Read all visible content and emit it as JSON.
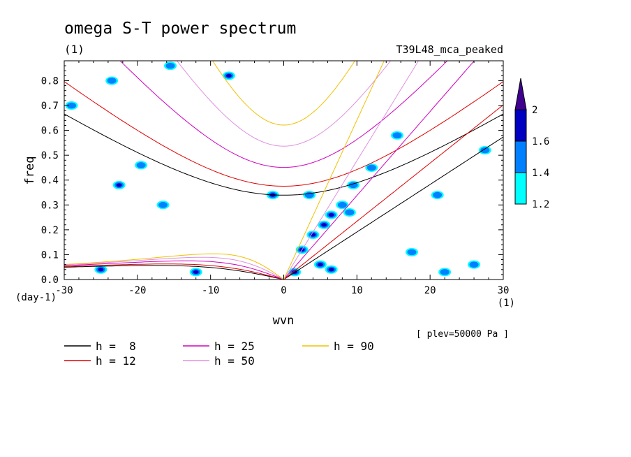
{
  "chart_data": {
    "type": "heatmap",
    "title": "omega S-T power spectrum",
    "subtitle_left": "(1)",
    "subtitle_right": "T39L48_mca_peaked",
    "xlabel": "wvn",
    "ylabel": "freq",
    "x_unit": "(1)",
    "y_unit": "(day-1)",
    "note": "[ plev=50000 Pa ]",
    "xlim": [
      -30,
      30
    ],
    "ylim": [
      0,
      0.88
    ],
    "x_ticks": [
      "-30",
      "-20",
      "-10",
      "0",
      "10",
      "20",
      "30"
    ],
    "x_tick_values": [
      -30,
      -20,
      -10,
      0,
      10,
      20,
      30
    ],
    "y_ticks": [
      "0.0",
      "0.1",
      "0.2",
      "0.3",
      "0.4",
      "0.5",
      "0.6",
      "0.7",
      "0.8"
    ],
    "y_tick_values": [
      0,
      0.1,
      0.2,
      0.3,
      0.4,
      0.5,
      0.6,
      0.7,
      0.8
    ],
    "colorbar": {
      "levels": [
        "1.2",
        "1.4",
        "1.6",
        "2"
      ],
      "level_values": [
        1.2,
        1.4,
        1.6,
        2.0
      ],
      "colors": [
        "#00ffff",
        "#0080ff",
        "#0000c0",
        "#400090"
      ]
    },
    "dispersion_curves": [
      {
        "name": "h =  8",
        "h": 8,
        "color": "#000000"
      },
      {
        "name": "h = 12",
        "h": 12,
        "color": "#e00000"
      },
      {
        "name": "h = 25",
        "h": 25,
        "color": "#d000c0"
      },
      {
        "name": "h = 50",
        "h": 50,
        "color": "#e090e0"
      },
      {
        "name": "h = 90",
        "h": 90,
        "color": "#f0c000"
      }
    ],
    "spectral_blobs": [
      {
        "x": 2.5,
        "y": 0.12,
        "level": 1.6
      },
      {
        "x": 4.0,
        "y": 0.18,
        "level": 1.6
      },
      {
        "x": 5.5,
        "y": 0.22,
        "level": 1.6
      },
      {
        "x": 6.5,
        "y": 0.26,
        "level": 1.6
      },
      {
        "x": 5.0,
        "y": 0.06,
        "level": 1.6
      },
      {
        "x": 1.5,
        "y": 0.03,
        "level": 1.6
      },
      {
        "x": 8.0,
        "y": 0.3,
        "level": 1.4
      },
      {
        "x": 9.5,
        "y": 0.38,
        "level": 1.4
      },
      {
        "x": 12.0,
        "y": 0.45,
        "level": 1.4
      },
      {
        "x": 6.5,
        "y": 0.04,
        "level": 1.6
      },
      {
        "x": -1.5,
        "y": 0.34,
        "level": 1.6
      },
      {
        "x": -22.5,
        "y": 0.38,
        "level": 1.6
      },
      {
        "x": -19.5,
        "y": 0.46,
        "level": 1.4
      },
      {
        "x": -16.5,
        "y": 0.3,
        "level": 1.4
      },
      {
        "x": -7.5,
        "y": 0.82,
        "level": 1.6
      },
      {
        "x": -15.5,
        "y": 0.86,
        "level": 1.4
      },
      {
        "x": -23.5,
        "y": 0.8,
        "level": 1.4
      },
      {
        "x": -29.0,
        "y": 0.7,
        "level": 1.4
      },
      {
        "x": 15.5,
        "y": 0.58,
        "level": 1.4
      },
      {
        "x": 17.5,
        "y": 0.11,
        "level": 1.4
      },
      {
        "x": 22.0,
        "y": 0.03,
        "level": 1.4
      },
      {
        "x": 26.0,
        "y": 0.06,
        "level": 1.4
      },
      {
        "x": -25.0,
        "y": 0.04,
        "level": 1.6
      },
      {
        "x": -12.0,
        "y": 0.03,
        "level": 1.6
      },
      {
        "x": 9.0,
        "y": 0.27,
        "level": 1.4
      },
      {
        "x": 3.5,
        "y": 0.34,
        "level": 1.4
      },
      {
        "x": 21.0,
        "y": 0.34,
        "level": 1.4
      },
      {
        "x": 27.5,
        "y": 0.52,
        "level": 1.4
      }
    ]
  }
}
